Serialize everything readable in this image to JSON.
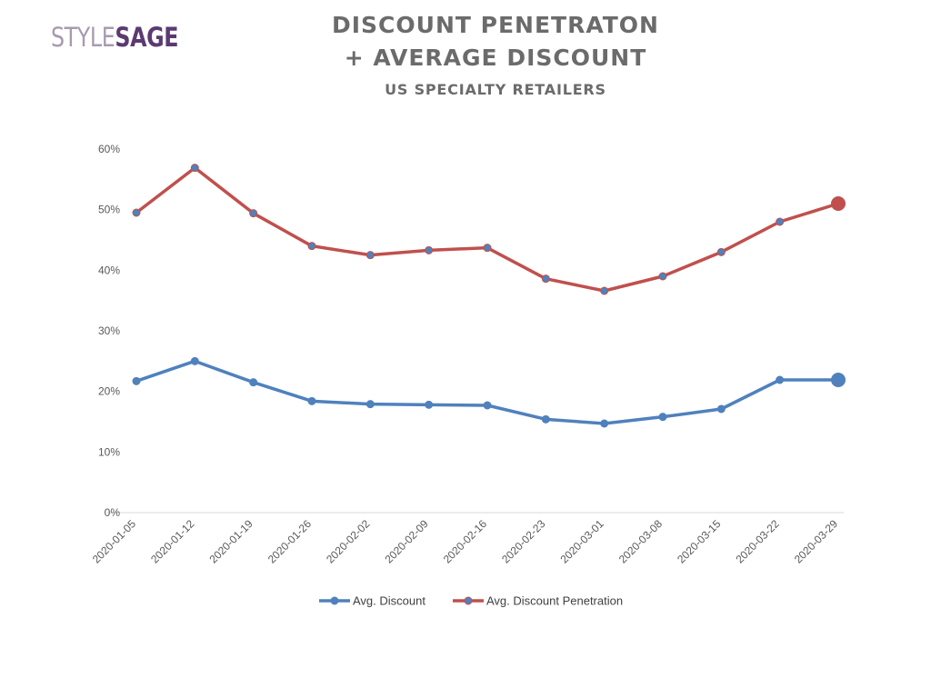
{
  "brand": {
    "style": "STYLE",
    "sage": "SAGE"
  },
  "title_lines": [
    "DISCOUNT PENETRATON",
    "+ AVERAGE DISCOUNT"
  ],
  "subtitle": "US SPECIALTY RETAILERS",
  "colors": {
    "avg_discount": "#4f81bd",
    "penetration": "#c0504d",
    "axis": "#d9d9d9",
    "text": "#595959"
  },
  "chart_data": {
    "type": "line",
    "title": "DISCOUNT PENETRATON + AVERAGE DISCOUNT",
    "subtitle": "US SPECIALTY RETAILERS",
    "categories": [
      "2020-01-05",
      "2020-01-12",
      "2020-01-19",
      "2020-01-26",
      "2020-02-02",
      "2020-02-09",
      "2020-02-16",
      "2020-02-23",
      "2020-03-01",
      "2020-03-08",
      "2020-03-15",
      "2020-03-22",
      "2020-03-29"
    ],
    "y_ticks": [
      "0%",
      "10%",
      "20%",
      "30%",
      "40%",
      "50%",
      "60%"
    ],
    "ylim": [
      0,
      0.6
    ],
    "grid": false,
    "legend_position": "bottom",
    "series": [
      {
        "name": "Avg. Discount",
        "color": "#4f81bd",
        "values": [
          0.217,
          0.25,
          0.215,
          0.184,
          0.179,
          0.178,
          0.177,
          0.154,
          0.147,
          0.158,
          0.171,
          0.219,
          0.219
        ]
      },
      {
        "name": "Avg. Discount Penetration",
        "color": "#c0504d",
        "values": [
          0.495,
          0.569,
          0.494,
          0.44,
          0.425,
          0.433,
          0.437,
          0.386,
          0.366,
          0.39,
          0.43,
          0.48,
          0.51
        ]
      }
    ]
  }
}
